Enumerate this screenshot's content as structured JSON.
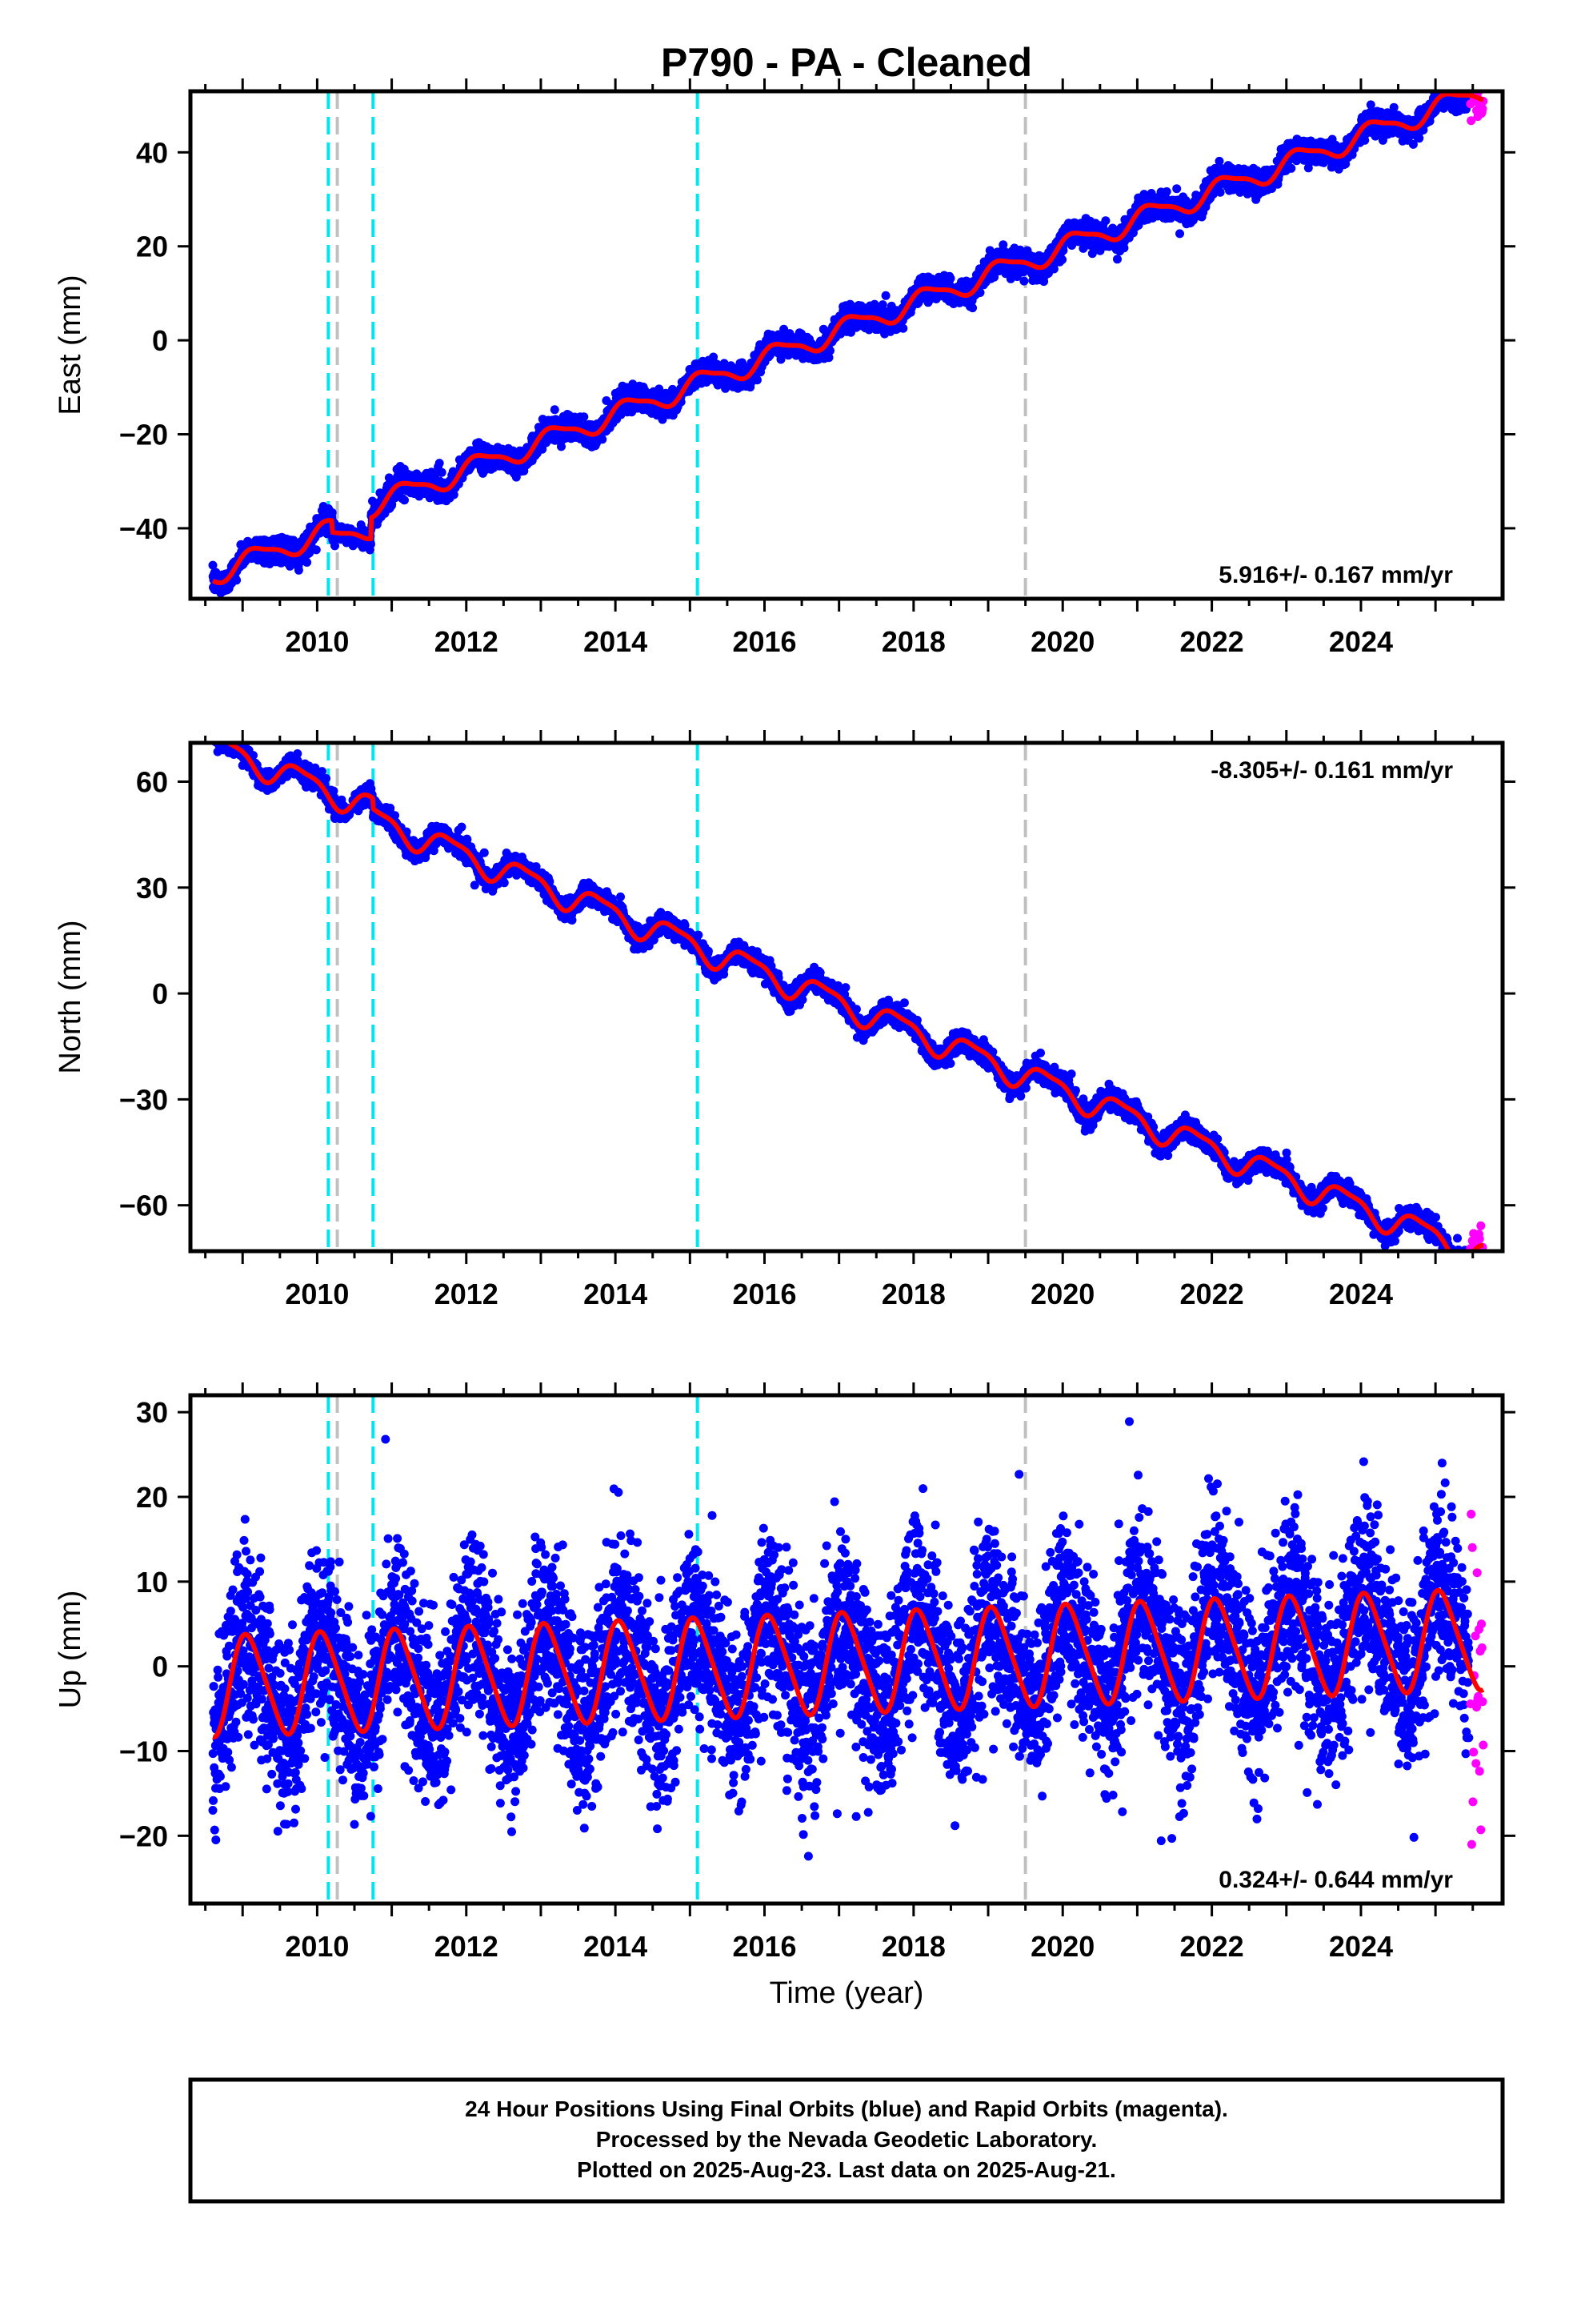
{
  "title": "P790  - PA - Cleaned",
  "xlabel": "Time (year)",
  "colors": {
    "final_orbits": "#0000ff",
    "rapid_orbits": "#ff00ff",
    "model_fit": "#ff0000",
    "equipment_change": "#00e5ee",
    "other_event": "#c0c0c0",
    "frame": "#000000"
  },
  "footer": {
    "line1": "24 Hour Positions Using Final Orbits (blue) and Rapid Orbits (magenta).",
    "line2": "Processed by the Nevada Geodetic Laboratory.",
    "line3": "Plotted on 2025-Aug-23. Last data on 2025-Aug-21."
  },
  "chart_data": [
    {
      "type": "scatter",
      "panel": "east",
      "ylabel": "East (mm)",
      "rate_label": "5.916+/- 0.167 mm/yr",
      "rate_position": "bottom-right",
      "xlim": [
        2008.3,
        2025.9
      ],
      "ylim": [
        -55,
        53
      ],
      "xticks": [
        2010,
        2012,
        2014,
        2016,
        2018,
        2020,
        2022,
        2024
      ],
      "xtick_labels": [
        "2010",
        "2012",
        "2014",
        "2016",
        "2018",
        "2020",
        "2022",
        "2024"
      ],
      "yticks": [
        -40,
        -20,
        0,
        20,
        40
      ],
      "ytick_labels": [
        "−40",
        "−20",
        "0",
        "20",
        "40"
      ],
      "trend": {
        "t0": 2017.1,
        "offset": 0.6,
        "rate_mm_per_yr": 5.916
      },
      "seasonal": {
        "annual_amp": 2.2,
        "annual_phase": 0.4,
        "semiannual_amp": 0.6,
        "semiannual_phase": 1.2
      },
      "steps": [
        {
          "time": 2010.2,
          "size": -2.5
        },
        {
          "time": 2010.72,
          "size": 4.5
        }
      ],
      "noise_sd": 1.2,
      "data_start": 2008.6,
      "data_end": 2025.45,
      "rapid_start": 2025.47,
      "rapid_end": 2025.64,
      "rapid_extra_spread": 2.5,
      "event_lines": [
        {
          "time": 2010.15,
          "kind": "equipment_change"
        },
        {
          "time": 2010.27,
          "kind": "other_event"
        },
        {
          "time": 2010.75,
          "kind": "equipment_change"
        },
        {
          "time": 2015.1,
          "kind": "equipment_change"
        },
        {
          "time": 2019.5,
          "kind": "other_event"
        }
      ]
    },
    {
      "type": "scatter",
      "panel": "north",
      "ylabel": "North (mm)",
      "rate_label": "-8.305+/- 0.161 mm/yr",
      "rate_position": "top-right",
      "xlim": [
        2008.3,
        2025.9
      ],
      "ylim": [
        -73,
        71
      ],
      "xticks": [
        2010,
        2012,
        2014,
        2016,
        2018,
        2020,
        2022,
        2024
      ],
      "xtick_labels": [
        "2010",
        "2012",
        "2014",
        "2016",
        "2018",
        "2020",
        "2022",
        "2024"
      ],
      "yticks": [
        -60,
        -30,
        0,
        30,
        60
      ],
      "ytick_labels": [
        "−60",
        "−30",
        "0",
        "30",
        "60"
      ],
      "trend": {
        "t0": 2017.1,
        "offset": -0.3,
        "rate_mm_per_yr": -8.305
      },
      "seasonal": {
        "annual_amp": 3.6,
        "annual_phase": 2.9,
        "semiannual_amp": 1.1,
        "semiannual_phase": 0.6
      },
      "steps": [
        {
          "time": 2010.75,
          "size": -3
        }
      ],
      "noise_sd": 1.4,
      "data_start": 2008.6,
      "data_end": 2025.45,
      "rapid_start": 2025.47,
      "rapid_end": 2025.64,
      "rapid_extra_spread": 2,
      "event_lines": [
        {
          "time": 2010.15,
          "kind": "equipment_change"
        },
        {
          "time": 2010.27,
          "kind": "other_event"
        },
        {
          "time": 2010.75,
          "kind": "equipment_change"
        },
        {
          "time": 2015.1,
          "kind": "equipment_change"
        },
        {
          "time": 2019.5,
          "kind": "other_event"
        }
      ]
    },
    {
      "type": "scatter",
      "panel": "up",
      "ylabel": "Up (mm)",
      "rate_label": "0.324+/- 0.644 mm/yr",
      "rate_position": "bottom-right",
      "xlim": [
        2008.3,
        2025.9
      ],
      "ylim": [
        -28,
        32
      ],
      "xticks": [
        2010,
        2012,
        2014,
        2016,
        2018,
        2020,
        2022,
        2024
      ],
      "xtick_labels": [
        "2010",
        "2012",
        "2014",
        "2016",
        "2018",
        "2020",
        "2022",
        "2024"
      ],
      "yticks": [
        -20,
        -10,
        0,
        10,
        20,
        30
      ],
      "ytick_labels": [
        "−20",
        "−10",
        "0",
        "10",
        "20",
        "30"
      ],
      "trend": {
        "t0": 2017.1,
        "offset": 0.4,
        "rate_mm_per_yr": 0.324
      },
      "seasonal": {
        "annual_amp": 5.8,
        "annual_phase": 1.1,
        "semiannual_amp": 0.8,
        "semiannual_phase": 2.2
      },
      "steps": [],
      "noise_sd": 5.2,
      "data_start": 2008.6,
      "data_end": 2025.45,
      "rapid_start": 2025.47,
      "rapid_end": 2025.64,
      "rapid_extra_spread": 8,
      "event_lines": [
        {
          "time": 2010.15,
          "kind": "equipment_change"
        },
        {
          "time": 2010.27,
          "kind": "other_event"
        },
        {
          "time": 2010.75,
          "kind": "equipment_change"
        },
        {
          "time": 2015.1,
          "kind": "equipment_change"
        },
        {
          "time": 2019.5,
          "kind": "other_event"
        }
      ]
    }
  ]
}
